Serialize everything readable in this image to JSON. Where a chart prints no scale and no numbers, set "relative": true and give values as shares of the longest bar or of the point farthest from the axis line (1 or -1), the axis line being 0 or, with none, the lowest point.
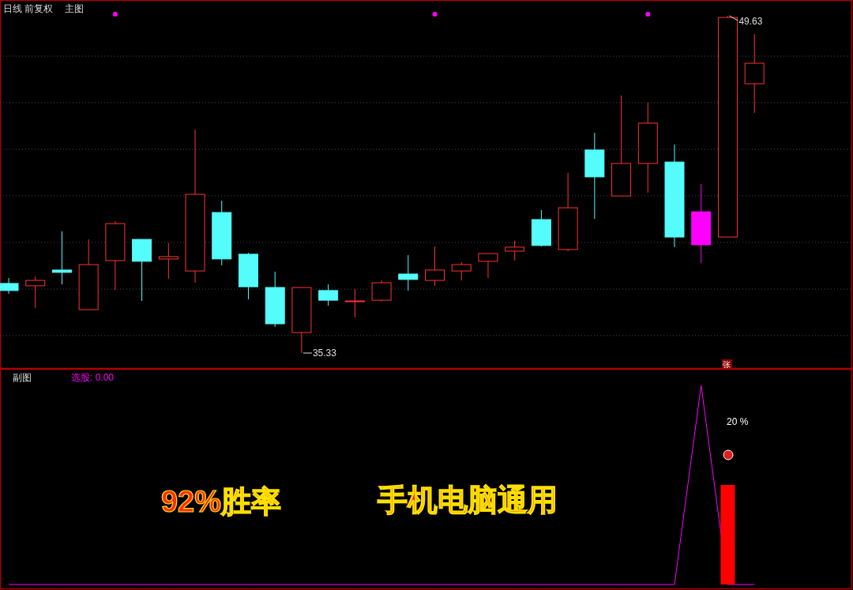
{
  "chart_data": [
    {
      "type": "candlestick",
      "title": "日线 前复权",
      "subtitle": "主图",
      "categories": [
        null,
        null,
        null,
        null,
        null,
        null,
        null,
        null,
        null,
        null,
        null,
        null,
        null,
        null,
        null,
        null,
        null,
        null,
        null,
        null,
        null,
        null,
        null,
        null,
        null,
        null,
        null,
        null,
        null
      ],
      "ohlc": [
        [
          38.28,
          38.51,
          37.84,
          37.98
        ],
        [
          38.18,
          38.58,
          37.24,
          38.41
        ],
        [
          38.85,
          40.49,
          38.24,
          38.75
        ],
        [
          37.17,
          40.15,
          37.17,
          39.08
        ],
        [
          39.25,
          40.92,
          38.01,
          40.82
        ],
        [
          40.15,
          40.15,
          37.54,
          39.22
        ],
        [
          39.32,
          39.99,
          38.48,
          39.42
        ],
        [
          38.81,
          44.81,
          38.31,
          42.06
        ],
        [
          41.29,
          41.79,
          39.05,
          39.32
        ],
        [
          39.52,
          39.58,
          37.61,
          38.14
        ],
        [
          38.11,
          38.78,
          36.44,
          36.57
        ],
        [
          36.2,
          38.11,
          35.33,
          38.11
        ],
        [
          37.98,
          38.24,
          37.34,
          37.57
        ],
        [
          37.51,
          38.04,
          36.84,
          37.54
        ],
        [
          37.57,
          38.41,
          37.51,
          38.31
        ],
        [
          38.68,
          39.48,
          37.98,
          38.45
        ],
        [
          38.41,
          39.85,
          38.18,
          38.85
        ],
        [
          38.81,
          39.18,
          38.41,
          39.08
        ],
        [
          39.22,
          39.55,
          38.51,
          39.55
        ],
        [
          39.65,
          40.09,
          39.25,
          39.82
        ],
        [
          40.99,
          41.39,
          39.85,
          39.89
        ],
        [
          39.72,
          42.97,
          39.65,
          41.49
        ],
        [
          43.94,
          44.67,
          41.02,
          42.8
        ],
        [
          41.99,
          46.25,
          41.99,
          43.37
        ],
        [
          43.37,
          45.95,
          42.13,
          45.08
        ],
        [
          43.43,
          44.17,
          39.82,
          40.25
        ],
        [
          41.32,
          42.5,
          39.15,
          39.92
        ],
        [
          40.25,
          49.63,
          40.25,
          49.56
        ],
        [
          46.75,
          48.86,
          45.51,
          47.62
        ]
      ],
      "colors": [
        "#54fcfc",
        "#ff3232",
        "#54fcfc",
        "#ff3232",
        "#ff3232",
        "#54fcfc",
        "#ff3232",
        "#ff3232",
        "#54fcfc",
        "#54fcfc",
        "#54fcfc",
        "#ff3232",
        "#54fcfc",
        "#ff3232",
        "#ff3232",
        "#54fcfc",
        "#ff3232",
        "#ff3232",
        "#ff3232",
        "#ff3232",
        "#54fcfc",
        "#ff3232",
        "#54fcfc",
        "#ff3232",
        "#ff3232",
        "#54fcfc",
        "#ff00ff",
        "#ff3232",
        "#ff3232"
      ],
      "series": [
        {
          "type": "scatter",
          "color": "#ff00ff",
          "values": [
            null,
            null,
            null,
            null,
            49.7,
            null,
            null,
            null,
            null,
            null,
            null,
            null,
            null,
            null,
            null,
            null,
            49.7,
            null,
            null,
            null,
            null,
            null,
            null,
            null,
            49.7,
            null,
            null,
            null,
            null
          ]
        }
      ],
      "ylim": [
        34.66,
        50.3
      ],
      "yticks": [
        {
          "value": 36.07,
          "label": null
        },
        {
          "value": 38.04,
          "label": null
        },
        {
          "value": 40.02,
          "label": null
        },
        {
          "value": 42.0,
          "label": null
        },
        {
          "value": 43.97,
          "label": null
        },
        {
          "value": 45.95,
          "label": null
        },
        {
          "value": 47.92,
          "label": null
        }
      ],
      "grid": "y",
      "annotations": [
        "49.63",
        "35.33",
        "张"
      ]
    },
    {
      "type": "line",
      "title": "副图",
      "subtitle": "选股: 0.00",
      "relative": true,
      "categories": [
        null,
        null,
        null,
        null,
        null,
        null,
        null,
        null,
        null,
        null,
        null,
        null,
        null,
        null,
        null,
        null,
        null,
        null,
        null,
        null,
        null,
        null,
        null,
        null,
        null,
        null,
        null,
        null,
        null
      ],
      "series": [
        {
          "color": "#ff00ff",
          "values": [
            0,
            0,
            0,
            0,
            0,
            0,
            0,
            0,
            0,
            0,
            0,
            0,
            0,
            0,
            0,
            0,
            0,
            0,
            0,
            0,
            0,
            0,
            0,
            0,
            0,
            0,
            1,
            0,
            0
          ]
        },
        {
          "type": "bar",
          "color": "#ff0000",
          "values": [
            null,
            null,
            null,
            null,
            null,
            null,
            null,
            null,
            null,
            null,
            null,
            null,
            null,
            null,
            null,
            null,
            null,
            null,
            null,
            null,
            null,
            null,
            null,
            null,
            null,
            null,
            null,
            0.5,
            null
          ]
        }
      ],
      "annotations": [
        "92%胜率",
        "手机电脑通用",
        "20 %"
      ]
    }
  ]
}
